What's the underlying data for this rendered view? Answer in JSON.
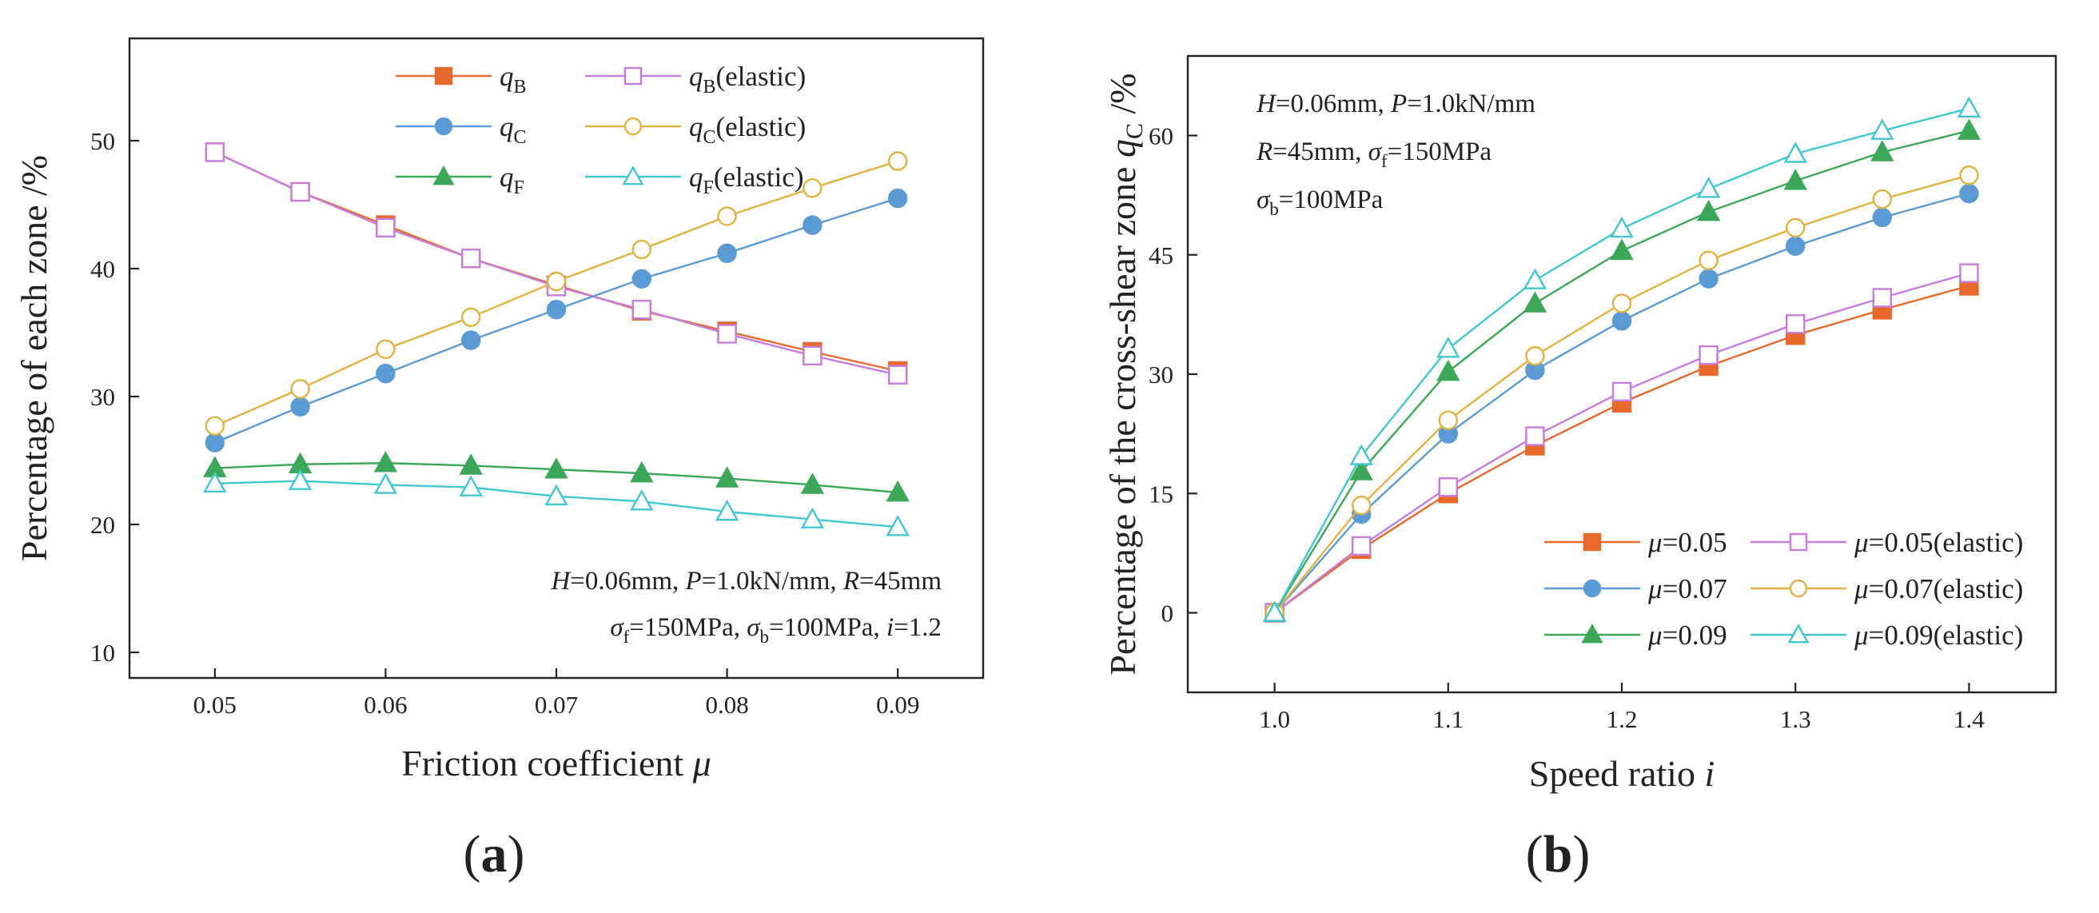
{
  "chart_data": [
    {
      "panel_id": "a",
      "panel_label": {
        "open": "(",
        "letter": "a",
        "close": ")"
      },
      "type": "line",
      "xlabel": "Friction coefficient μ",
      "xlabel_parts": [
        "Friction coefficient ",
        "μ"
      ],
      "ylabel": "Percentage of each zone /%",
      "xlim": [
        0.045,
        0.095
      ],
      "ylim": [
        8,
        58
      ],
      "x": [
        0.05,
        0.055,
        0.06,
        0.065,
        0.07,
        0.075,
        0.08,
        0.085,
        0.09
      ],
      "xticks": [
        0.05,
        0.06,
        0.07,
        0.08,
        0.09
      ],
      "xtick_labels": [
        "0.05",
        "0.06",
        "0.07",
        "0.08",
        "0.09"
      ],
      "yticks": [
        10,
        20,
        30,
        40,
        50
      ],
      "ytick_labels": [
        "10",
        "20",
        "30",
        "40",
        "50"
      ],
      "legend_position": "top-center",
      "legend_columns": 2,
      "series": [
        {
          "name": "qB",
          "label": "q",
          "sub": "B",
          "suffix": "",
          "color": "#e8692a",
          "marker": "square",
          "filled": true,
          "values": [
            49.1,
            46.0,
            43.4,
            40.8,
            38.7,
            36.7,
            35.1,
            33.5,
            32.0
          ]
        },
        {
          "name": "qB(elastic)",
          "label": "q",
          "sub": "B",
          "suffix": "(elastic)",
          "color": "#c67ddc",
          "marker": "square",
          "filled": false,
          "values": [
            49.1,
            46.0,
            43.2,
            40.8,
            38.6,
            36.8,
            34.9,
            33.2,
            31.7
          ]
        },
        {
          "name": "qC",
          "label": "q",
          "sub": "C",
          "suffix": "",
          "color": "#5b9bd5",
          "marker": "circle",
          "filled": true,
          "values": [
            26.4,
            29.2,
            31.8,
            34.4,
            36.8,
            39.2,
            41.2,
            43.4,
            45.5
          ]
        },
        {
          "name": "qC(elastic)",
          "label": "q",
          "sub": "C",
          "suffix": "(elastic)",
          "color": "#e0b441",
          "marker": "circle",
          "filled": false,
          "values": [
            27.7,
            30.6,
            33.7,
            36.2,
            39.0,
            41.5,
            44.1,
            46.3,
            48.4
          ]
        },
        {
          "name": "qF",
          "label": "q",
          "sub": "F",
          "suffix": "",
          "color": "#3aa857",
          "marker": "triangle",
          "filled": true,
          "values": [
            24.4,
            24.7,
            24.8,
            24.6,
            24.3,
            24.0,
            23.6,
            23.1,
            22.5
          ]
        },
        {
          "name": "qF(elastic)",
          "label": "q",
          "sub": "F",
          "suffix": "(elastic)",
          "color": "#40c8cf",
          "marker": "triangle",
          "filled": false,
          "values": [
            23.2,
            23.4,
            23.1,
            22.9,
            22.2,
            21.8,
            21.0,
            20.4,
            19.8
          ]
        }
      ],
      "annotations": [
        {
          "text": "H=0.06mm, P=1.0kN/mm, R=45mm",
          "segments": [
            [
              "H",
              "i"
            ],
            [
              "=0.06mm, ",
              ""
            ],
            [
              "P",
              "i"
            ],
            [
              "=1.0kN/mm, ",
              ""
            ],
            [
              "R",
              "i"
            ],
            [
              "=45mm",
              ""
            ]
          ]
        },
        {
          "text": "σf=150MPa, σb=100MPa, i=1.2",
          "segments": [
            [
              "σ",
              "i"
            ],
            [
              "f",
              "s"
            ],
            [
              "=150MPa, ",
              ""
            ],
            [
              "σ",
              "i"
            ],
            [
              "b",
              "s"
            ],
            [
              "=100MPa, ",
              ""
            ],
            [
              "i",
              "i"
            ],
            [
              "=1.2",
              ""
            ]
          ]
        }
      ]
    },
    {
      "panel_id": "b",
      "panel_label": {
        "open": "(",
        "letter": "b",
        "close": ")"
      },
      "type": "line",
      "xlabel": "Speed ratio i",
      "xlabel_parts": [
        "Speed ratio ",
        "i"
      ],
      "ylabel": "Percentage of the cross-shear zone qC /%",
      "ylabel_parts": [
        "Percentage of the cross-shear zone ",
        "q",
        "C",
        " /%"
      ],
      "xlim": [
        0.95,
        1.45
      ],
      "ylim": [
        -10,
        70
      ],
      "x": [
        1.0,
        1.05,
        1.1,
        1.15,
        1.2,
        1.25,
        1.3,
        1.35,
        1.4
      ],
      "xticks": [
        1.0,
        1.1,
        1.2,
        1.3,
        1.4
      ],
      "xtick_labels": [
        "1.0",
        "1.1",
        "1.2",
        "1.3",
        "1.4"
      ],
      "yticks": [
        0,
        15,
        30,
        45,
        60
      ],
      "ytick_labels": [
        "0",
        "15",
        "30",
        "45",
        "60"
      ],
      "legend_position": "bottom-right",
      "legend_columns": 2,
      "series": [
        {
          "name": "μ=0.05",
          "label": "μ",
          "value": "=0.05",
          "suffix": "",
          "color": "#e8692a",
          "marker": "square",
          "filled": true,
          "values": [
            0,
            8.0,
            15.0,
            21.0,
            26.4,
            31.0,
            34.9,
            38.1,
            41.1
          ]
        },
        {
          "name": "μ=0.05(elastic)",
          "label": "μ",
          "value": "=0.05",
          "suffix": "(elastic)",
          "color": "#c67ddc",
          "marker": "square",
          "filled": false,
          "values": [
            0,
            8.4,
            15.8,
            22.2,
            27.8,
            32.4,
            36.3,
            39.6,
            42.7
          ]
        },
        {
          "name": "μ=0.07",
          "label": "μ",
          "value": "=0.07",
          "suffix": "",
          "color": "#5b9bd5",
          "marker": "circle",
          "filled": true,
          "values": [
            0,
            12.4,
            22.5,
            30.5,
            36.7,
            42.0,
            46.1,
            49.7,
            52.7
          ]
        },
        {
          "name": "μ=0.07(elastic)",
          "label": "μ",
          "value": "=0.07",
          "suffix": "(elastic)",
          "color": "#e0b441",
          "marker": "circle",
          "filled": false,
          "values": [
            0,
            13.5,
            24.2,
            32.3,
            38.9,
            44.3,
            48.4,
            52.0,
            55.0
          ]
        },
        {
          "name": "μ=0.09",
          "label": "μ",
          "value": "=0.09",
          "suffix": "",
          "color": "#3aa857",
          "marker": "triangle",
          "filled": true,
          "values": [
            0,
            17.8,
            30.3,
            38.9,
            45.5,
            50.4,
            54.3,
            57.9,
            60.6
          ]
        },
        {
          "name": "μ=0.09(elastic)",
          "label": "μ",
          "value": "=0.09",
          "suffix": "(elastic)",
          "color": "#40c8cf",
          "marker": "triangle",
          "filled": false,
          "values": [
            0,
            19.7,
            33.2,
            41.8,
            48.3,
            53.3,
            57.7,
            60.6,
            63.4
          ]
        }
      ],
      "annotations": [
        {
          "text": "H=0.06mm, P=1.0kN/mm",
          "segments": [
            [
              "H",
              "i"
            ],
            [
              "=0.06mm, ",
              ""
            ],
            [
              "P",
              "i"
            ],
            [
              "=1.0kN/mm",
              ""
            ]
          ]
        },
        {
          "text": "R=45mm, σf=150MPa",
          "segments": [
            [
              "R",
              "i"
            ],
            [
              "=45mm, ",
              ""
            ],
            [
              "σ",
              "i"
            ],
            [
              "f",
              "s"
            ],
            [
              "=150MPa",
              ""
            ]
          ]
        },
        {
          "text": "σb=100MPa",
          "segments": [
            [
              "σ",
              "i"
            ],
            [
              "b",
              "s"
            ],
            [
              "=100MPa",
              ""
            ]
          ]
        }
      ]
    }
  ]
}
